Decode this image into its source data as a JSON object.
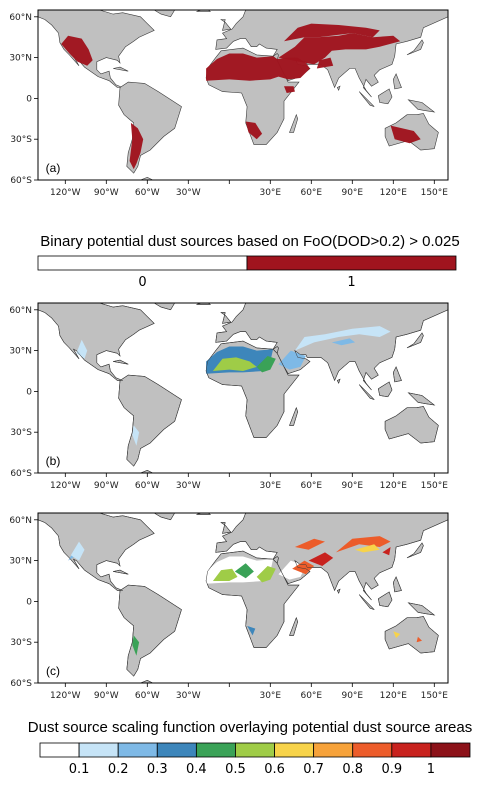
{
  "colors": {
    "land": "#c0c0c0",
    "ocean": "#ffffff",
    "coast": "#3a3a3a",
    "binary_source": "#a0141e",
    "frame": "#000000"
  },
  "axes": {
    "lon_labels": [
      "120°W",
      "90°W",
      "60°W",
      "30°W",
      "0",
      "30°E",
      "60°E",
      "90°E",
      "120°E",
      "150°E"
    ],
    "lat_labels": [
      "60°N",
      "30°N",
      "0",
      "30°S",
      "60°S"
    ]
  },
  "panels": [
    {
      "label": "(a)"
    },
    {
      "label": "(b)"
    },
    {
      "label": "(c)"
    }
  ],
  "colorbar_binary": {
    "title": "Binary potential dust sources based on FoO(DOD>0.2) > 0.025",
    "labels": [
      "0",
      "1"
    ],
    "colors": [
      "#ffffff",
      "#a0141e"
    ]
  },
  "colorbar_scaling": {
    "title": "Dust source scaling function overlaying potential dust source areas",
    "labels": [
      "0.1",
      "0.2",
      "0.3",
      "0.4",
      "0.5",
      "0.6",
      "0.7",
      "0.8",
      "0.9",
      "1"
    ],
    "colors": [
      "#ffffff",
      "#c6e4f7",
      "#7eb9e6",
      "#3d86bb",
      "#3aa257",
      "#9fcc47",
      "#f7d34a",
      "#f6a23a",
      "#ec5c2a",
      "#c8221e",
      "#8c1219"
    ]
  }
}
